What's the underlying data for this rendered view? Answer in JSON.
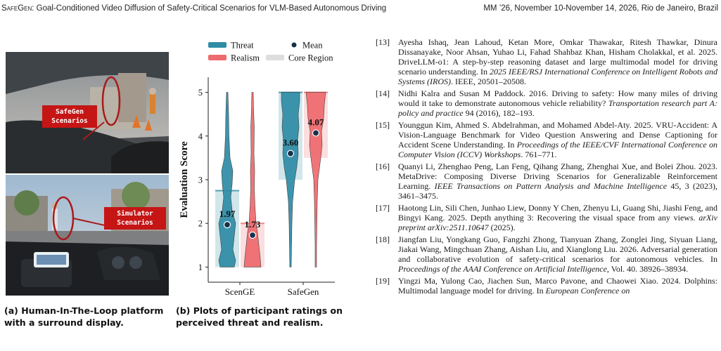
{
  "header": {
    "title_sc": "SafeGen",
    "title_rest": ": Goal-Conditioned Video Diffusion of Safety-Critical Scenarios for VLM-Based Autonomous Driving",
    "venue": "MM ’26, November 10-November 14, 2026, Rio de Janeiro, Brazil"
  },
  "figure_a": {
    "tag_top": "SafeGen\nScenarios",
    "tag_bottom": "Simulator\nScenarios",
    "caption": "(a) Human-In-The-Loop platform with a surround display."
  },
  "figure_b": {
    "caption": "(b) Plots of participant ratings on perceived threat and realism."
  },
  "chart_data": {
    "type": "violin",
    "ylabel": "Evaluation Score",
    "xlabel": "",
    "ylim": [
      0.75,
      5.25
    ],
    "yticks": [
      "1",
      "2",
      "3",
      "4",
      "5"
    ],
    "categories": [
      "ScenGE",
      "SafeGen"
    ],
    "legend": {
      "placement": "top",
      "entries": [
        {
          "label": "Threat",
          "kind": "box",
          "color": "#2e8ca6"
        },
        {
          "label": "Mean",
          "kind": "dot",
          "color": "#16324a"
        },
        {
          "label": "Realism",
          "kind": "box",
          "color": "#ef6a6e"
        },
        {
          "label": "Core Region",
          "kind": "box",
          "color": "#d9d9d9"
        }
      ]
    },
    "series": [
      {
        "name": "Threat",
        "color": "#2e8ca6",
        "means": [
          1.97,
          3.6
        ],
        "mean_labels": [
          "1.97",
          "3.60"
        ],
        "core": [
          [
            1.0,
            2.75
          ],
          [
            3.0,
            5.0
          ]
        ]
      },
      {
        "name": "Realism",
        "color": "#ef6a6e",
        "means": [
          1.73,
          4.07
        ],
        "mean_labels": [
          "1.73",
          "4.07"
        ],
        "core": [
          [
            1.0,
            2.0
          ],
          [
            3.5,
            5.0
          ]
        ]
      }
    ],
    "grid": false
  },
  "references": [
    {
      "num": "[13]",
      "text": "Ayesha Ishaq, Jean Lahoud, Ketan More, Omkar Thawakar, Ritesh Thawkar, Dinura Dissanayake, Noor Ahsan, Yuhao Li, Fahad Shahbaz Khan, Hisham Cholakkal, et al. 2025. DriveLLM-o1: A step-by-step reasoning dataset and large multimodal model for driving scenario understanding. In ",
      "venue": "2025 IEEE/RSJ International Conference on Intelligent Robots and Systems (IROS)",
      "tail": ". IEEE, 20501–20508."
    },
    {
      "num": "[14]",
      "text": "Nidhi Kalra and Susan M Paddock. 2016. Driving to safety: How many miles of driving would it take to demonstrate autonomous vehicle reliability? ",
      "venue": "Transportation research part A: policy and practice",
      "tail": " 94 (2016), 182–193."
    },
    {
      "num": "[15]",
      "text": "Younggun Kim, Ahmed S. Abdelrahman, and Mohamed Abdel-Aty. 2025. VRU-Accident: A Vision-Language Benchmark for Video Question Answering and Dense Captioning for Accident Scene Understanding. In ",
      "venue": "Proceedings of the IEEE/CVF International Conference on Computer Vision (ICCV) Workshops",
      "tail": ". 761–771."
    },
    {
      "num": "[16]",
      "text": "Quanyi Li, Zhenghao Peng, Lan Feng, Qihang Zhang, Zhenghai Xue, and Bolei Zhou. 2023. MetaDrive: Composing Diverse Driving Scenarios for Generalizable Reinforcement Learning. ",
      "venue": "IEEE Transactions on Pattern Analysis and Machine Intelligence",
      "tail": " 45, 3 (2023), 3461–3475."
    },
    {
      "num": "[17]",
      "text": "Haotong Lin, Sili Chen, Junhao Liew, Donny Y Chen, Zhenyu Li, Guang Shi, Jiashi Feng, and Bingyi Kang. 2025. Depth anything 3: Recovering the visual space from any views. ",
      "venue": "arXiv preprint arXiv:2511.10647",
      "tail": " (2025)."
    },
    {
      "num": "[18]",
      "text": "Jiangfan Liu, Yongkang Guo, Fangzhi Zhong, Tianyuan Zhang, Zonglei Jing, Siyuan Liang, Jiakai Wang, Mingchuan Zhang, Aishan Liu, and Xianglong Liu. 2026. Adversarial generation and collaborative evolution of safety-critical scenarios for autonomous vehicles. In ",
      "venue": "Proceedings of the AAAI Conference on Artificial Intelligence",
      "tail": ", Vol. 40. 38926–38934."
    },
    {
      "num": "[19]",
      "text": "Yingzi Ma, Yulong Cao, Jiachen Sun, Marco Pavone, and Chaowei Xiao. 2024. Dolphins: Multimodal language model for driving. In ",
      "venue": "European Conference on",
      "tail": ""
    }
  ]
}
